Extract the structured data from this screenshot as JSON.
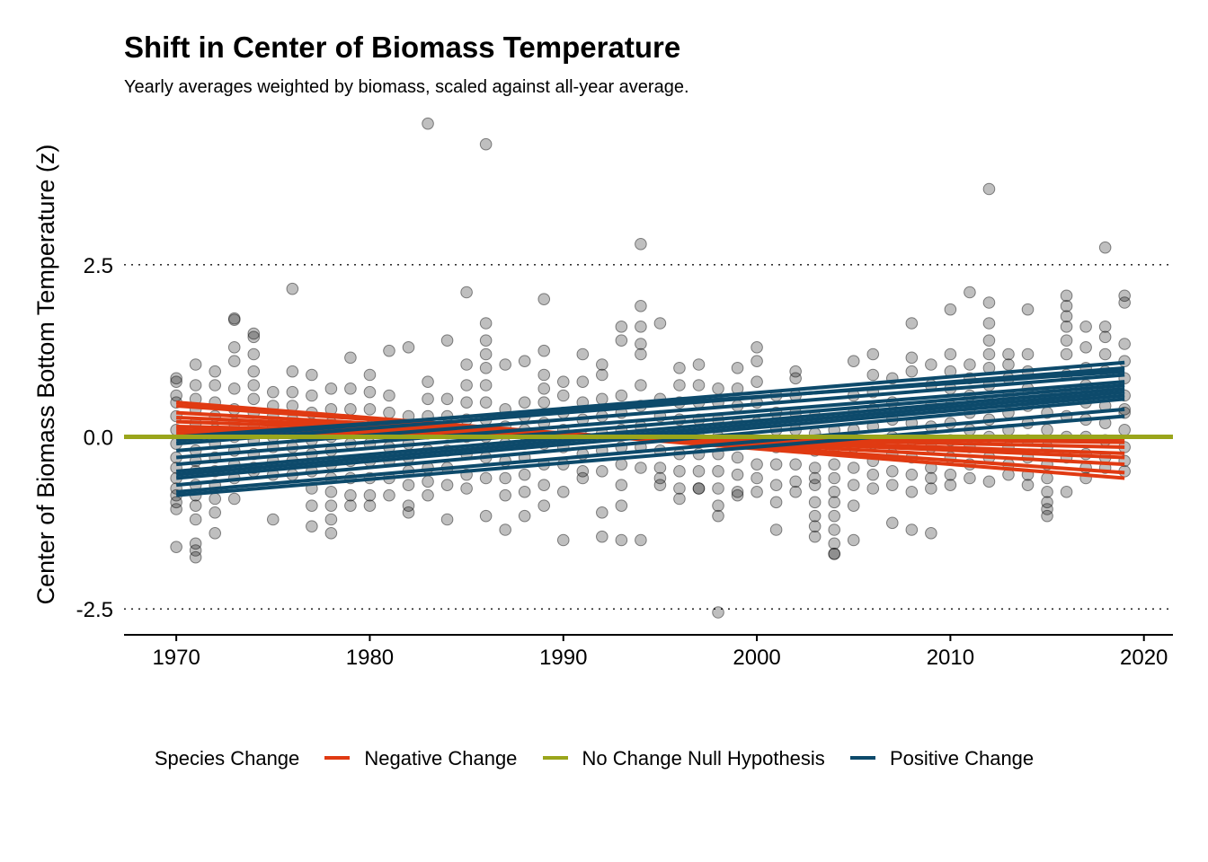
{
  "chart_data": {
    "type": "scatter",
    "title": "Shift in Center of Biomass Temperature",
    "subtitle": "Yearly averages weighted by biomass, scaled against all-year average.",
    "xlabel": "",
    "ylabel": "Center of Biomass Bottom Temperature (z)",
    "xlim": [
      1967.3,
      2021.5
    ],
    "ylim": [
      -2.85,
      4.65
    ],
    "x_ticks": [
      1970,
      1980,
      1990,
      2000,
      2010,
      2020
    ],
    "y_ticks": [
      -2.5,
      0.0,
      2.5
    ],
    "y_tick_labels": [
      "-2.5",
      "0.0",
      "2.5"
    ],
    "grid": "dotted horizontal at y ticks",
    "legend_position": "bottom",
    "legend": {
      "title": "Species Change",
      "entries": [
        {
          "label": "Negative Change",
          "color": "#e03a12"
        },
        {
          "label": "No Change Null Hypothesis",
          "color": "#9aa51b"
        },
        {
          "label": "Positive Change",
          "color": "#0d4a6b"
        }
      ]
    },
    "point_color": "#000000",
    "point_alpha": 0.25,
    "null_line": {
      "y": 0,
      "color": "#9aa51b"
    },
    "negative_trends": [
      {
        "x": [
          1970,
          2019
        ],
        "y": [
          0.5,
          -0.6
        ]
      },
      {
        "x": [
          1970,
          2019
        ],
        "y": [
          0.45,
          -0.52
        ]
      },
      {
        "x": [
          1970,
          2019
        ],
        "y": [
          0.35,
          -0.4
        ]
      },
      {
        "x": [
          1970,
          2019
        ],
        "y": [
          0.28,
          -0.3
        ]
      },
      {
        "x": [
          1970,
          2019
        ],
        "y": [
          0.22,
          -0.24
        ]
      },
      {
        "x": [
          1970,
          2019
        ],
        "y": [
          0.15,
          -0.15
        ]
      },
      {
        "x": [
          1970,
          2019
        ],
        "y": [
          0.1,
          -0.08
        ]
      },
      {
        "x": [
          1970,
          2019
        ],
        "y": [
          0.05,
          -0.03
        ]
      }
    ],
    "positive_trends": [
      {
        "x": [
          1970,
          2019
        ],
        "y": [
          -0.8,
          0.4
        ]
      },
      {
        "x": [
          1970,
          2019
        ],
        "y": [
          -0.7,
          0.55
        ]
      },
      {
        "x": [
          1970,
          2019
        ],
        "y": [
          -0.6,
          0.6
        ]
      },
      {
        "x": [
          1970,
          2019
        ],
        "y": [
          -0.5,
          0.7
        ]
      },
      {
        "x": [
          1970,
          2019
        ],
        "y": [
          -0.4,
          0.75
        ]
      },
      {
        "x": [
          1970,
          2019
        ],
        "y": [
          -0.3,
          0.8
        ]
      },
      {
        "x": [
          1970,
          2019
        ],
        "y": [
          -0.2,
          0.9
        ]
      },
      {
        "x": [
          1970,
          2019
        ],
        "y": [
          -0.1,
          1.0
        ]
      },
      {
        "x": [
          1970,
          2019
        ],
        "y": [
          -0.05,
          1.08
        ]
      },
      {
        "x": [
          1970,
          2019
        ],
        "y": [
          0.0,
          0.95
        ]
      },
      {
        "x": [
          1970,
          2019
        ],
        "y": [
          -0.85,
          0.3
        ]
      },
      {
        "x": [
          1970,
          2019
        ],
        "y": [
          -0.55,
          0.65
        ]
      }
    ],
    "points": {
      "x": [
        1970,
        1970,
        1970,
        1970,
        1970,
        1970,
        1970,
        1970,
        1970,
        1970,
        1970,
        1970,
        1970,
        1970,
        1970,
        1971,
        1971,
        1971,
        1971,
        1971,
        1971,
        1971,
        1971,
        1971,
        1971,
        1971,
        1971,
        1971,
        1971,
        1971,
        1971,
        1972,
        1972,
        1972,
        1972,
        1972,
        1972,
        1972,
        1972,
        1972,
        1972,
        1972,
        1972,
        1973,
        1973,
        1973,
        1973,
        1973,
        1973,
        1973,
        1973,
        1973,
        1973,
        1973,
        1973,
        1974,
        1974,
        1974,
        1974,
        1974,
        1974,
        1974,
        1974,
        1974,
        1974,
        1974,
        1974,
        1975,
        1975,
        1975,
        1975,
        1975,
        1975,
        1975,
        1975,
        1975,
        1976,
        1976,
        1976,
        1976,
        1976,
        1976,
        1976,
        1976,
        1976,
        1977,
        1977,
        1977,
        1977,
        1977,
        1977,
        1977,
        1977,
        1977,
        1977,
        1978,
        1978,
        1978,
        1978,
        1978,
        1978,
        1978,
        1978,
        1978,
        1978,
        1978,
        1979,
        1979,
        1979,
        1979,
        1979,
        1979,
        1979,
        1979,
        1979,
        1980,
        1980,
        1980,
        1980,
        1980,
        1980,
        1980,
        1980,
        1980,
        1981,
        1981,
        1981,
        1981,
        1981,
        1981,
        1981,
        1981,
        1982,
        1982,
        1982,
        1982,
        1982,
        1982,
        1982,
        1982,
        1982,
        1983,
        1983,
        1983,
        1983,
        1983,
        1983,
        1983,
        1983,
        1983,
        1984,
        1984,
        1984,
        1984,
        1984,
        1984,
        1984,
        1984,
        1985,
        1985,
        1985,
        1985,
        1985,
        1985,
        1985,
        1985,
        1985,
        1986,
        1986,
        1986,
        1986,
        1986,
        1986,
        1986,
        1986,
        1986,
        1986,
        1986,
        1986,
        1987,
        1987,
        1987,
        1987,
        1987,
        1987,
        1987,
        1987,
        1988,
        1988,
        1988,
        1988,
        1988,
        1988,
        1988,
        1988,
        1988,
        1989,
        1989,
        1989,
        1989,
        1989,
        1989,
        1989,
        1989,
        1989,
        1989,
        1990,
        1990,
        1990,
        1990,
        1990,
        1990,
        1990,
        1990,
        1991,
        1991,
        1991,
        1991,
        1991,
        1991,
        1991,
        1991,
        1992,
        1992,
        1992,
        1992,
        1992,
        1992,
        1992,
        1992,
        1992,
        1993,
        1993,
        1993,
        1993,
        1993,
        1993,
        1993,
        1993,
        1993,
        1993,
        1994,
        1994,
        1994,
        1994,
        1994,
        1994,
        1994,
        1994,
        1994,
        1994,
        1994,
        1995,
        1995,
        1995,
        1995,
        1995,
        1995,
        1995,
        1995,
        1996,
        1996,
        1996,
        1996,
        1996,
        1996,
        1996,
        1996,
        1996,
        1997,
        1997,
        1997,
        1997,
        1997,
        1997,
        1997,
        1997,
        1997,
        1998,
        1998,
        1998,
        1998,
        1998,
        1998,
        1998,
        1998,
        1998,
        1998,
        1999,
        1999,
        1999,
        1999,
        1999,
        1999,
        1999,
        1999,
        1999,
        2000,
        2000,
        2000,
        2000,
        2000,
        2000,
        2000,
        2000,
        2000,
        2001,
        2001,
        2001,
        2001,
        2001,
        2001,
        2001,
        2001,
        2002,
        2002,
        2002,
        2002,
        2002,
        2002,
        2002,
        2002,
        2002,
        2003,
        2003,
        2003,
        2003,
        2003,
        2003,
        2003,
        2003,
        2003,
        2003,
        2004,
        2004,
        2004,
        2004,
        2004,
        2004,
        2004,
        2004,
        2004,
        2004,
        2004,
        2005,
        2005,
        2005,
        2005,
        2005,
        2005,
        2005,
        2005,
        2005,
        2006,
        2006,
        2006,
        2006,
        2006,
        2006,
        2006,
        2006,
        2006,
        2007,
        2007,
        2007,
        2007,
        2007,
        2007,
        2007,
        2007,
        2008,
        2008,
        2008,
        2008,
        2008,
        2008,
        2008,
        2008,
        2008,
        2009,
        2009,
        2009,
        2009,
        2009,
        2009,
        2009,
        2009,
        2009,
        2010,
        2010,
        2010,
        2010,
        2010,
        2010,
        2010,
        2010,
        2010,
        2010,
        2011,
        2011,
        2011,
        2011,
        2011,
        2011,
        2011,
        2011,
        2011,
        2012,
        2012,
        2012,
        2012,
        2012,
        2012,
        2012,
        2012,
        2012,
        2012,
        2012,
        2012,
        2013,
        2013,
        2013,
        2013,
        2013,
        2013,
        2013,
        2013,
        2013,
        2014,
        2014,
        2014,
        2014,
        2014,
        2014,
        2014,
        2014,
        2014,
        2014,
        2015,
        2015,
        2015,
        2015,
        2015,
        2015,
        2015,
        2015,
        2015,
        2015,
        2016,
        2016,
        2016,
        2016,
        2016,
        2016,
        2016,
        2016,
        2016,
        2016,
        2016,
        2016,
        2017,
        2017,
        2017,
        2017,
        2017,
        2017,
        2017,
        2017,
        2017,
        2017,
        2018,
        2018,
        2018,
        2018,
        2018,
        2018,
        2018,
        2018,
        2018,
        2018,
        2018,
        2019,
        2019,
        2019,
        2019,
        2019,
        2019,
        2019,
        2019,
        2019,
        2019,
        2019,
        2019
      ],
      "y": [
        0.85,
        0.8,
        0.5,
        0.3,
        0.1,
        -0.1,
        -0.3,
        -0.45,
        -0.6,
        -0.75,
        -0.85,
        -0.95,
        -1.05,
        -1.6,
        0.6,
        1.05,
        0.75,
        0.55,
        0.4,
        0.2,
        0.0,
        -0.2,
        -0.35,
        -0.5,
        -0.7,
        -0.85,
        -1.0,
        -1.2,
        -1.55,
        -1.65,
        -1.75,
        0.95,
        0.75,
        0.5,
        0.3,
        0.1,
        -0.1,
        -0.3,
        -0.5,
        -0.7,
        -0.9,
        -1.1,
        -1.4,
        1.72,
        1.7,
        1.3,
        1.1,
        0.7,
        0.4,
        0.2,
        0.0,
        -0.2,
        -0.4,
        -0.6,
        -0.9,
        1.5,
        1.45,
        1.2,
        0.95,
        0.75,
        0.55,
        0.35,
        0.15,
        -0.05,
        -0.25,
        -0.45,
        -0.5,
        0.65,
        0.45,
        0.3,
        0.15,
        0.0,
        -0.15,
        -0.35,
        -0.55,
        -1.2,
        2.15,
        0.95,
        0.65,
        0.45,
        0.25,
        0.05,
        -0.15,
        -0.35,
        -0.55,
        0.9,
        0.6,
        0.35,
        0.15,
        -0.05,
        -0.25,
        -0.5,
        -0.75,
        -1.0,
        -1.3,
        0.7,
        0.4,
        0.2,
        0.0,
        -0.2,
        -0.4,
        -0.6,
        -0.8,
        -1.0,
        -1.2,
        -1.4,
        1.15,
        0.7,
        0.4,
        0.15,
        -0.1,
        -0.35,
        -0.6,
        -0.85,
        -1.0,
        0.9,
        0.65,
        0.4,
        0.15,
        -0.1,
        -0.35,
        -0.6,
        -0.85,
        -1.0,
        1.25,
        0.6,
        0.35,
        0.1,
        -0.15,
        -0.35,
        -0.6,
        -0.85,
        1.3,
        0.3,
        0.1,
        -0.1,
        -0.3,
        -0.5,
        -0.7,
        -1.0,
        -1.1,
        4.55,
        0.8,
        0.55,
        0.3,
        0.05,
        -0.2,
        -0.45,
        -0.65,
        -0.85,
        1.4,
        0.55,
        0.3,
        0.05,
        -0.2,
        -0.45,
        -0.7,
        -1.2,
        2.1,
        1.05,
        0.75,
        0.5,
        0.25,
        0.0,
        -0.25,
        -0.55,
        -0.75,
        4.25,
        1.65,
        1.4,
        1.2,
        1.0,
        0.75,
        0.5,
        0.25,
        0.0,
        -0.3,
        -0.6,
        -1.15,
        1.05,
        0.4,
        0.15,
        -0.1,
        -0.35,
        -0.6,
        -0.85,
        -1.35,
        1.1,
        0.5,
        0.3,
        0.1,
        -0.1,
        -0.3,
        -0.55,
        -0.8,
        -1.15,
        2.0,
        1.25,
        0.9,
        0.7,
        0.5,
        0.2,
        -0.1,
        -0.4,
        -0.7,
        -1.0,
        0.8,
        0.6,
        0.35,
        0.1,
        -0.15,
        -0.4,
        -0.8,
        -1.5,
        1.2,
        0.8,
        0.5,
        0.25,
        0.0,
        -0.25,
        -0.5,
        -0.6,
        1.05,
        0.9,
        0.55,
        0.3,
        0.05,
        -0.2,
        -0.5,
        -1.1,
        -1.45,
        1.6,
        1.4,
        0.6,
        0.35,
        0.1,
        -0.15,
        -0.4,
        -0.7,
        -1.0,
        -1.5,
        2.8,
        1.9,
        1.6,
        1.35,
        1.2,
        0.75,
        0.45,
        0.15,
        -0.15,
        -0.45,
        -1.5,
        1.65,
        0.55,
        0.3,
        0.05,
        -0.2,
        -0.45,
        -0.6,
        -0.7,
        1.0,
        0.75,
        0.5,
        0.25,
        0.0,
        -0.25,
        -0.5,
        -0.75,
        -0.9,
        1.05,
        0.75,
        0.5,
        0.25,
        0.0,
        -0.25,
        -0.5,
        -0.75,
        -0.75,
        0.7,
        0.5,
        0.25,
        0.0,
        -0.25,
        -0.5,
        -0.75,
        -1.0,
        -1.15,
        -2.55,
        1.0,
        0.7,
        0.45,
        0.2,
        -0.05,
        -0.3,
        -0.55,
        -0.8,
        -0.85,
        1.3,
        1.1,
        0.8,
        0.5,
        0.2,
        -0.1,
        -0.4,
        -0.6,
        -0.8,
        0.6,
        0.35,
        0.1,
        -0.15,
        -0.4,
        -0.7,
        -1.35,
        -0.95,
        0.95,
        0.85,
        0.6,
        0.35,
        0.1,
        -0.15,
        -0.4,
        -0.65,
        -0.8,
        0.3,
        0.05,
        -0.2,
        -0.45,
        -0.7,
        -0.95,
        -1.15,
        -1.3,
        -1.45,
        -0.6,
        0.1,
        -0.15,
        -0.4,
        -0.6,
        -0.8,
        -0.95,
        -1.15,
        -1.35,
        -1.55,
        -1.7,
        -1.7,
        1.1,
        0.6,
        0.35,
        0.1,
        -0.15,
        -0.45,
        -0.7,
        -1.0,
        -1.5,
        1.2,
        0.9,
        0.65,
        0.4,
        0.15,
        -0.1,
        -0.35,
        -0.55,
        -0.75,
        0.85,
        0.5,
        0.25,
        0.0,
        -0.25,
        -0.5,
        -0.7,
        -1.25,
        1.65,
        1.15,
        0.95,
        0.2,
        -0.05,
        -0.3,
        -0.55,
        -0.8,
        -1.35,
        1.05,
        0.75,
        0.45,
        0.15,
        -0.15,
        -0.45,
        -0.75,
        -0.6,
        -1.4,
        1.85,
        1.2,
        0.95,
        0.7,
        0.45,
        0.2,
        -0.05,
        -0.3,
        -0.55,
        -0.7,
        2.1,
        1.05,
        0.85,
        0.6,
        0.35,
        0.1,
        -0.15,
        -0.4,
        -0.6,
        3.6,
        1.95,
        1.65,
        1.4,
        1.2,
        1.0,
        0.75,
        0.5,
        0.25,
        0.0,
        -0.3,
        -0.65,
        1.2,
        1.05,
        0.85,
        0.6,
        0.35,
        0.1,
        -0.15,
        -0.4,
        -0.55,
        1.85,
        1.2,
        0.95,
        0.7,
        0.45,
        0.2,
        -0.05,
        -0.3,
        -0.55,
        -0.7,
        0.6,
        0.35,
        0.1,
        -0.15,
        -0.4,
        -0.6,
        -0.8,
        -0.95,
        -1.05,
        -1.15,
        2.05,
        1.9,
        1.75,
        1.6,
        1.4,
        1.2,
        0.9,
        0.6,
        0.3,
        0.0,
        -0.3,
        -0.8,
        1.6,
        1.3,
        1.0,
        0.75,
        0.5,
        0.25,
        0.0,
        -0.25,
        -0.45,
        -0.6,
        2.75,
        1.6,
        1.45,
        1.2,
        0.95,
        0.7,
        0.45,
        0.2,
        -0.05,
        -0.3,
        -0.45,
        2.05,
        1.95,
        1.35,
        1.1,
        0.85,
        0.6,
        0.35,
        0.1,
        -0.15,
        -0.35,
        -0.5,
        0.4
      ]
    }
  }
}
